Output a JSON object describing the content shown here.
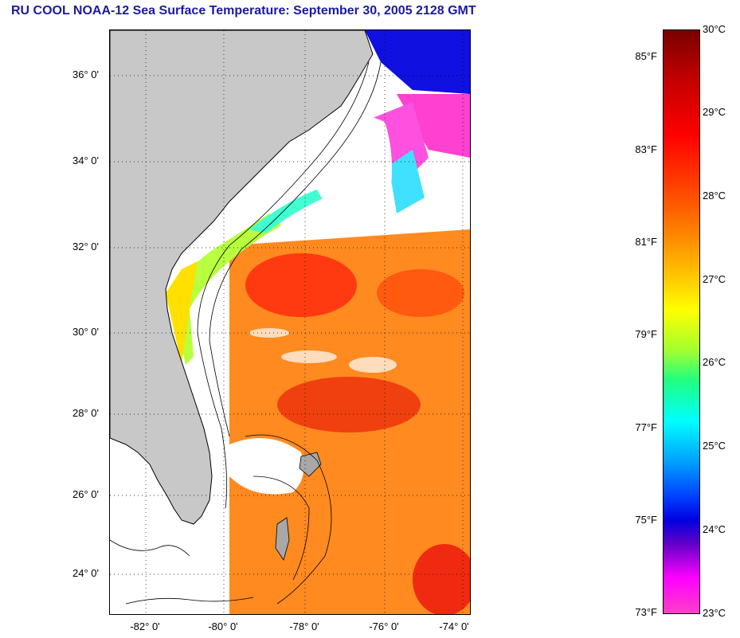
{
  "title": "RU COOL  NOAA-12  Sea Surface Temperature:  September 30, 2005 2128 GMT",
  "lat_labels": [
    "36° 0'",
    "34° 0'",
    "32° 0'",
    "30° 0'",
    "28° 0'",
    "26° 0'",
    "24° 0'"
  ],
  "lon_labels": [
    "-82° 0'",
    "-80° 0'",
    "-78° 0'",
    "-76° 0'",
    "-74° 0'"
  ],
  "colorbar": {
    "fahrenheit": [
      "85°F",
      "83°F",
      "81°F",
      "79°F",
      "77°F",
      "75°F",
      "73°F"
    ],
    "celsius": [
      "30°C",
      "29°C",
      "28°C",
      "27°C",
      "26°C",
      "25°C",
      "24°C",
      "23°C"
    ]
  },
  "colors": {
    "land": "#c8c8c8",
    "cloud": "#ffffff",
    "title": "#1a1aa0"
  }
}
